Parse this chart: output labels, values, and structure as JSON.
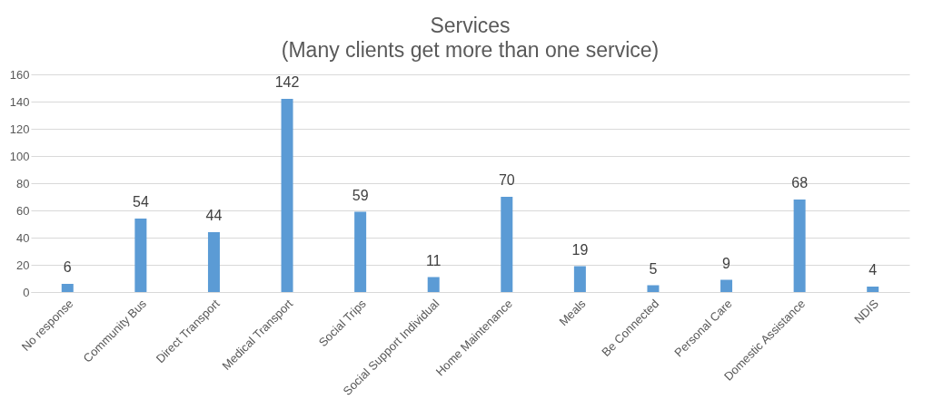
{
  "chart_data": {
    "type": "bar",
    "title": "Services",
    "subtitle": "(Many clients get more than one service)",
    "categories": [
      "No response",
      "Community Bus",
      "Direct Transport",
      "Medical Transport",
      "Social Trips",
      "Social Support Individual",
      "Home Maintenance",
      "Meals",
      "Be Connected",
      "Personal Care",
      "Domestic Assistance",
      "NDIS"
    ],
    "values": [
      6,
      54,
      44,
      142,
      59,
      11,
      70,
      19,
      5,
      9,
      68,
      4
    ],
    "color": "#5b9bd5",
    "ylim": [
      0,
      160
    ],
    "yticks": [
      0,
      20,
      40,
      60,
      80,
      100,
      120,
      140,
      160
    ],
    "grid": "y",
    "data_labels": true
  }
}
